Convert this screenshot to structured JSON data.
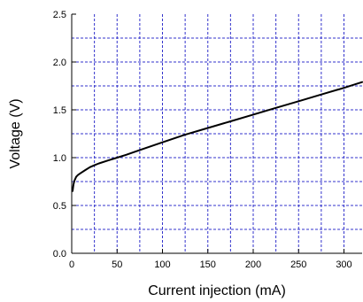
{
  "chart_data": {
    "type": "line",
    "title": "",
    "xlabel": "Current injection (mA)",
    "ylabel": "Voltage (V)",
    "xlim": [
      0,
      320
    ],
    "ylim": [
      0,
      2.5
    ],
    "x_ticks": [
      0,
      50,
      100,
      150,
      200,
      250,
      300
    ],
    "x_tick_labels": [
      "0",
      "50",
      "100",
      "150",
      "200",
      "250",
      "300"
    ],
    "y_ticks": [
      0,
      0.5,
      1.0,
      1.5,
      2.0,
      2.5
    ],
    "y_tick_labels": [
      "0.0",
      "0.5",
      "1.0",
      "1.5",
      "2.0",
      "2.5"
    ],
    "grid": true,
    "grid_x_step": 25,
    "grid_y_step": 0.25,
    "grid_color": "#3333cc",
    "line_color": "#000000",
    "series": [
      {
        "x": [
          1,
          2,
          3,
          5,
          7,
          10,
          15,
          20,
          25,
          30,
          40,
          50,
          60,
          75,
          100,
          125,
          150,
          175,
          200,
          225,
          250,
          275,
          300,
          320
        ],
        "y": [
          0.65,
          0.72,
          0.76,
          0.8,
          0.82,
          0.84,
          0.87,
          0.9,
          0.92,
          0.94,
          0.97,
          1.0,
          1.03,
          1.08,
          1.16,
          1.24,
          1.31,
          1.38,
          1.45,
          1.52,
          1.59,
          1.66,
          1.73,
          1.79
        ]
      }
    ]
  }
}
